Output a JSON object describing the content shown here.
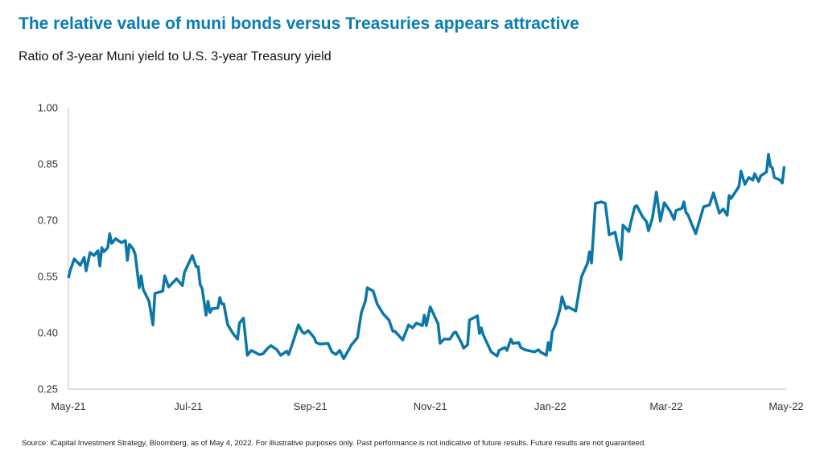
{
  "title": "The relative value of muni bonds versus Treasuries appears attractive",
  "subtitle": "Ratio of 3-year Muni yield to U.S. 3-year Treasury yield",
  "source": "Source: iCapital Investment Strategy, Bloomberg, as of May 4, 2022. For illustrative purposes only. Past performance is not indicative of future results. Future results are not guaranteed.",
  "colors": {
    "title": "#0a7db5",
    "line": "#0b77a8",
    "axis": "#bfbfbf"
  },
  "chart_data": {
    "type": "line",
    "title": "Ratio of 3-year Muni yield to U.S. 3-year Treasury yield",
    "xlabel": "",
    "ylabel": "",
    "xlim": [
      "2021-05-01",
      "2022-05-01"
    ],
    "ylim": [
      0.25,
      1.0
    ],
    "grid": false,
    "x_tick_labels": [
      "May-21",
      "Jul-21",
      "Sep-21",
      "Nov-21",
      "Jan-22",
      "Mar-22",
      "May-22"
    ],
    "x_tick_dates": [
      "2021-05-01",
      "2021-07-01",
      "2021-09-01",
      "2021-11-01",
      "2022-01-01",
      "2022-03-01",
      "2022-05-01"
    ],
    "y_tick_labels": [
      "1.00",
      "0.85",
      "0.70",
      "0.55",
      "0.40",
      "0.25"
    ],
    "y_tick_values": [
      1.0,
      0.85,
      0.7,
      0.55,
      0.4,
      0.25
    ],
    "series": [
      {
        "points": [
          [
            "2021-05-01",
            0.546
          ],
          [
            "2021-05-02",
            0.567
          ],
          [
            "2021-05-04",
            0.597
          ],
          [
            "2021-05-07",
            0.58
          ],
          [
            "2021-05-09",
            0.601
          ],
          [
            "2021-05-10",
            0.565
          ],
          [
            "2021-05-12",
            0.614
          ],
          [
            "2021-05-14",
            0.606
          ],
          [
            "2021-05-16",
            0.619
          ],
          [
            "2021-05-17",
            0.578
          ],
          [
            "2021-05-18",
            0.627
          ],
          [
            "2021-05-19",
            0.616
          ],
          [
            "2021-05-21",
            0.627
          ],
          [
            "2021-05-22",
            0.664
          ],
          [
            "2021-05-23",
            0.638
          ],
          [
            "2021-05-25",
            0.651
          ],
          [
            "2021-05-28",
            0.64
          ],
          [
            "2021-05-30",
            0.646
          ],
          [
            "2021-05-31",
            0.593
          ],
          [
            "2021-06-01",
            0.636
          ],
          [
            "2021-06-03",
            0.623
          ],
          [
            "2021-06-04",
            0.608
          ],
          [
            "2021-06-06",
            0.52
          ],
          [
            "2021-06-07",
            0.552
          ],
          [
            "2021-06-08",
            0.516
          ],
          [
            "2021-06-11",
            0.484
          ],
          [
            "2021-06-13",
            0.421
          ],
          [
            "2021-06-14",
            0.505
          ],
          [
            "2021-06-18",
            0.511
          ],
          [
            "2021-06-19",
            0.552
          ],
          [
            "2021-06-21",
            0.522
          ],
          [
            "2021-06-25",
            0.544
          ],
          [
            "2021-06-28",
            0.526
          ],
          [
            "2021-06-29",
            0.561
          ],
          [
            "2021-07-03",
            0.606
          ],
          [
            "2021-07-05",
            0.576
          ],
          [
            "2021-07-06",
            0.576
          ],
          [
            "2021-07-07",
            0.529
          ],
          [
            "2021-07-08",
            0.518
          ],
          [
            "2021-07-10",
            0.447
          ],
          [
            "2021-07-11",
            0.484
          ],
          [
            "2021-07-12",
            0.454
          ],
          [
            "2021-07-13",
            0.464
          ],
          [
            "2021-07-16",
            0.466
          ],
          [
            "2021-07-17",
            0.494
          ],
          [
            "2021-07-18",
            0.477
          ],
          [
            "2021-07-19",
            0.477
          ],
          [
            "2021-07-21",
            0.421
          ],
          [
            "2021-07-24",
            0.396
          ],
          [
            "2021-07-26",
            0.383
          ],
          [
            "2021-07-27",
            0.426
          ],
          [
            "2021-07-29",
            0.439
          ],
          [
            "2021-07-31",
            0.34
          ],
          [
            "2021-08-02",
            0.353
          ],
          [
            "2021-08-06",
            0.342
          ],
          [
            "2021-08-08",
            0.344
          ],
          [
            "2021-08-10",
            0.357
          ],
          [
            "2021-08-12",
            0.366
          ],
          [
            "2021-08-15",
            0.355
          ],
          [
            "2021-08-17",
            0.34
          ],
          [
            "2021-08-20",
            0.351
          ],
          [
            "2021-08-21",
            0.342
          ],
          [
            "2021-08-23",
            0.372
          ],
          [
            "2021-08-26",
            0.421
          ],
          [
            "2021-08-28",
            0.402
          ],
          [
            "2021-08-29",
            0.398
          ],
          [
            "2021-08-31",
            0.406
          ],
          [
            "2021-09-03",
            0.387
          ],
          [
            "2021-09-04",
            0.374
          ],
          [
            "2021-09-06",
            0.37
          ],
          [
            "2021-09-10",
            0.372
          ],
          [
            "2021-09-12",
            0.349
          ],
          [
            "2021-09-14",
            0.342
          ],
          [
            "2021-09-16",
            0.353
          ],
          [
            "2021-09-18",
            0.331
          ],
          [
            "2021-09-22",
            0.368
          ],
          [
            "2021-09-25",
            0.387
          ],
          [
            "2021-09-27",
            0.454
          ],
          [
            "2021-09-29",
            0.484
          ],
          [
            "2021-09-30",
            0.52
          ],
          [
            "2021-10-03",
            0.511
          ],
          [
            "2021-10-05",
            0.477
          ],
          [
            "2021-10-08",
            0.451
          ],
          [
            "2021-10-11",
            0.434
          ],
          [
            "2021-10-13",
            0.404
          ],
          [
            "2021-10-14",
            0.404
          ],
          [
            "2021-10-18",
            0.381
          ],
          [
            "2021-10-21",
            0.421
          ],
          [
            "2021-10-23",
            0.413
          ],
          [
            "2021-10-25",
            0.426
          ],
          [
            "2021-10-28",
            0.419
          ],
          [
            "2021-10-29",
            0.447
          ],
          [
            "2021-10-30",
            0.419
          ],
          [
            "2021-11-01",
            0.469
          ],
          [
            "2021-11-05",
            0.424
          ],
          [
            "2021-11-06",
            0.372
          ],
          [
            "2021-11-08",
            0.383
          ],
          [
            "2021-11-11",
            0.383
          ],
          [
            "2021-11-13",
            0.4
          ],
          [
            "2021-11-14",
            0.402
          ],
          [
            "2021-11-17",
            0.372
          ],
          [
            "2021-11-18",
            0.359
          ],
          [
            "2021-11-20",
            0.368
          ],
          [
            "2021-11-21",
            0.434
          ],
          [
            "2021-11-25",
            0.445
          ],
          [
            "2021-11-26",
            0.398
          ],
          [
            "2021-11-27",
            0.413
          ],
          [
            "2021-11-28",
            0.394
          ],
          [
            "2021-12-02",
            0.349
          ],
          [
            "2021-12-05",
            0.338
          ],
          [
            "2021-12-06",
            0.353
          ],
          [
            "2021-12-09",
            0.361
          ],
          [
            "2021-12-10",
            0.353
          ],
          [
            "2021-12-12",
            0.383
          ],
          [
            "2021-12-13",
            0.372
          ],
          [
            "2021-12-16",
            0.374
          ],
          [
            "2021-12-17",
            0.361
          ],
          [
            "2021-12-19",
            0.355
          ],
          [
            "2021-12-24",
            0.349
          ],
          [
            "2021-12-26",
            0.355
          ],
          [
            "2021-12-27",
            0.349
          ],
          [
            "2021-12-30",
            0.34
          ],
          [
            "2021-12-31",
            0.374
          ],
          [
            "2022-01-01",
            0.353
          ],
          [
            "2022-01-02",
            0.402
          ],
          [
            "2022-01-04",
            0.426
          ],
          [
            "2022-01-06",
            0.464
          ],
          [
            "2022-01-07",
            0.496
          ],
          [
            "2022-01-09",
            0.464
          ],
          [
            "2022-01-10",
            0.469
          ],
          [
            "2022-01-14",
            0.458
          ],
          [
            "2022-01-16",
            0.522
          ],
          [
            "2022-01-17",
            0.55
          ],
          [
            "2022-01-20",
            0.586
          ],
          [
            "2022-01-21",
            0.616
          ],
          [
            "2022-01-22",
            0.586
          ],
          [
            "2022-01-24",
            0.745
          ],
          [
            "2022-01-27",
            0.749
          ],
          [
            "2022-01-29",
            0.745
          ],
          [
            "2022-01-31",
            0.661
          ],
          [
            "2022-02-03",
            0.668
          ],
          [
            "2022-02-04",
            0.642
          ],
          [
            "2022-02-06",
            0.595
          ],
          [
            "2022-02-07",
            0.687
          ],
          [
            "2022-02-10",
            0.67
          ],
          [
            "2022-02-11",
            0.694
          ],
          [
            "2022-02-13",
            0.736
          ],
          [
            "2022-02-14",
            0.739
          ],
          [
            "2022-02-17",
            0.709
          ],
          [
            "2022-02-19",
            0.696
          ],
          [
            "2022-02-20",
            0.672
          ],
          [
            "2022-02-22",
            0.706
          ],
          [
            "2022-02-24",
            0.775
          ],
          [
            "2022-02-26",
            0.698
          ],
          [
            "2022-02-28",
            0.747
          ],
          [
            "2022-03-03",
            0.724
          ],
          [
            "2022-03-05",
            0.702
          ],
          [
            "2022-03-06",
            0.726
          ],
          [
            "2022-03-09",
            0.732
          ],
          [
            "2022-03-10",
            0.749
          ],
          [
            "2022-03-11",
            0.721
          ],
          [
            "2022-03-12",
            0.715
          ],
          [
            "2022-03-16",
            0.664
          ],
          [
            "2022-03-20",
            0.736
          ],
          [
            "2022-03-23",
            0.741
          ],
          [
            "2022-03-25",
            0.773
          ],
          [
            "2022-03-28",
            0.719
          ],
          [
            "2022-03-30",
            0.73
          ],
          [
            "2022-04-01",
            0.713
          ],
          [
            "2022-04-02",
            0.766
          ],
          [
            "2022-04-03",
            0.758
          ],
          [
            "2022-04-07",
            0.79
          ],
          [
            "2022-04-08",
            0.831
          ],
          [
            "2022-04-10",
            0.796
          ],
          [
            "2022-04-12",
            0.814
          ],
          [
            "2022-04-14",
            0.807
          ],
          [
            "2022-04-15",
            0.824
          ],
          [
            "2022-04-17",
            0.803
          ],
          [
            "2022-04-18",
            0.818
          ],
          [
            "2022-04-21",
            0.829
          ],
          [
            "2022-04-22",
            0.876
          ],
          [
            "2022-04-23",
            0.844
          ],
          [
            "2022-04-24",
            0.839
          ],
          [
            "2022-04-25",
            0.814
          ],
          [
            "2022-04-28",
            0.807
          ],
          [
            "2022-04-29",
            0.799
          ],
          [
            "2022-04-30",
            0.844
          ]
        ]
      }
    ]
  }
}
